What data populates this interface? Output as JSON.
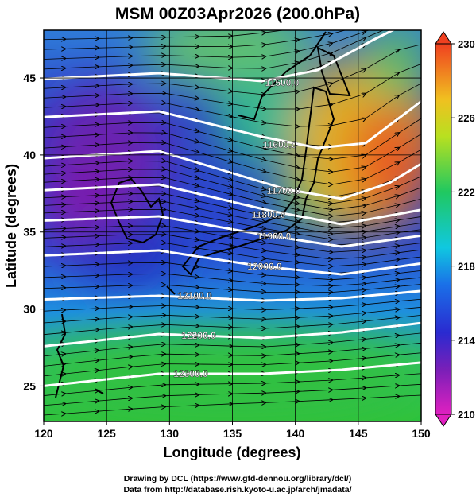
{
  "chart_data": {
    "type": "contour",
    "title": "MSM 00Z03Apr2026 (200.0hPa)",
    "xlabel": "Longitude (degrees)",
    "ylabel": "Latitude  (degrees)",
    "xlim": [
      120,
      150
    ],
    "ylim": [
      22.7,
      48.1
    ],
    "xticks": [
      120,
      125,
      130,
      135,
      140,
      145,
      150
    ],
    "yticks": [
      25,
      30,
      35,
      40,
      45
    ],
    "colorbar": {
      "lim": [
        210,
        230
      ],
      "ticks": [
        210,
        214,
        218,
        222,
        226,
        230
      ]
    },
    "contours": [
      {
        "value": 11500,
        "label": "11500.0"
      },
      {
        "value": 11600,
        "label": "11600.0"
      },
      {
        "value": 11700,
        "label": "11700.0"
      },
      {
        "value": 11800,
        "label": "11800.0"
      },
      {
        "value": 11900,
        "label": "11900.0"
      },
      {
        "value": 12000,
        "label": "12000.0"
      },
      {
        "value": 12100,
        "label": "12100.0"
      },
      {
        "value": 12200,
        "label": "12200.0"
      },
      {
        "value": 12300,
        "label": "12300.0"
      }
    ],
    "credits": [
      "Drawing by DCL (https://www.gfd-dennou.org/library/dcl/)",
      "Data from http://database.rish.kyoto-u.ac.jp/arch/jmadata/"
    ]
  }
}
